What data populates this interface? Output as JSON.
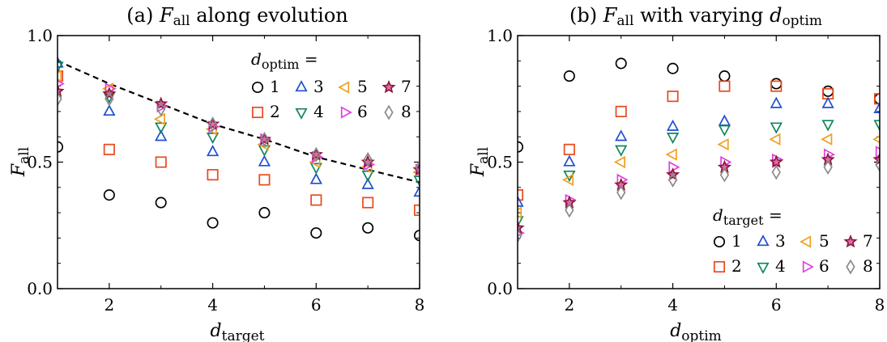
{
  "chart_data": [
    {
      "type": "scatter",
      "title": "(a) F_all along evolution",
      "title_prefix": "(a)",
      "title_var": "F",
      "title_sub": "all",
      "title_suffix": "along evolution",
      "xlabel_var": "d",
      "xlabel_sub": "target",
      "ylabel_var": "F",
      "ylabel_sub": "all",
      "xlim": [
        1,
        8
      ],
      "ylim": [
        0,
        1
      ],
      "xticks": [
        "2",
        "4",
        "6",
        "8"
      ],
      "yticks": [
        "0.0",
        "0.5",
        "1.0"
      ],
      "grid": false,
      "legend_title_var": "d",
      "legend_title_sub": "optim",
      "legend_title_suffix": "=",
      "legend_position": "top-right",
      "x": [
        1,
        2,
        3,
        4,
        5,
        6,
        7,
        8
      ],
      "series": [
        {
          "name": "1",
          "values": [
            0.56,
            0.37,
            0.34,
            0.26,
            0.3,
            0.22,
            0.24,
            0.21
          ]
        },
        {
          "name": "2",
          "values": [
            0.84,
            0.55,
            0.5,
            0.45,
            0.43,
            0.35,
            0.34,
            0.31
          ]
        },
        {
          "name": "3",
          "values": [
            0.89,
            0.7,
            0.6,
            0.54,
            0.5,
            0.43,
            0.41,
            0.38
          ]
        },
        {
          "name": "4",
          "values": [
            0.88,
            0.76,
            0.64,
            0.6,
            0.55,
            0.48,
            0.45,
            0.43
          ]
        },
        {
          "name": "5",
          "values": [
            0.84,
            0.79,
            0.67,
            0.63,
            0.57,
            0.5,
            0.48,
            0.46
          ]
        },
        {
          "name": "6",
          "values": [
            0.81,
            0.79,
            0.72,
            0.64,
            0.59,
            0.52,
            0.49,
            0.47
          ]
        },
        {
          "name": "7",
          "values": [
            0.78,
            0.77,
            0.73,
            0.65,
            0.59,
            0.53,
            0.5,
            0.47
          ]
        },
        {
          "name": "8",
          "values": [
            0.75,
            0.75,
            0.71,
            0.65,
            0.59,
            0.53,
            0.51,
            0.48
          ]
        }
      ],
      "dashed_curve": {
        "x": [
          1,
          2,
          3,
          4,
          5,
          6,
          7,
          8
        ],
        "values": [
          0.9,
          0.81,
          0.73,
          0.65,
          0.59,
          0.52,
          0.47,
          0.42
        ]
      }
    },
    {
      "type": "scatter",
      "title": "(b) F_all with varying d_optim",
      "title_prefix": "(b)",
      "title_var": "F",
      "title_sub": "all",
      "title_mid": "with varying",
      "title_var2": "d",
      "title_sub2": "optim",
      "xlabel_var": "d",
      "xlabel_sub": "optim",
      "ylabel_var": "F",
      "ylabel_sub": "all",
      "xlim": [
        1,
        8
      ],
      "ylim": [
        0,
        1
      ],
      "xticks": [
        "2",
        "4",
        "6",
        "8"
      ],
      "yticks": [
        "0.0",
        "0.5",
        "1.0"
      ],
      "grid": false,
      "legend_title_var": "d",
      "legend_title_sub": "target",
      "legend_title_suffix": "=",
      "legend_position": "bottom-right",
      "x": [
        1,
        2,
        3,
        4,
        5,
        6,
        7,
        8
      ],
      "series": [
        {
          "name": "1",
          "values": [
            0.56,
            0.84,
            0.89,
            0.87,
            0.84,
            0.81,
            0.78,
            0.75
          ]
        },
        {
          "name": "2",
          "values": [
            0.37,
            0.55,
            0.7,
            0.76,
            0.8,
            0.8,
            0.77,
            0.75
          ]
        },
        {
          "name": "3",
          "values": [
            0.34,
            0.5,
            0.6,
            0.64,
            0.66,
            0.73,
            0.73,
            0.71
          ]
        },
        {
          "name": "4",
          "values": [
            0.27,
            0.45,
            0.55,
            0.6,
            0.63,
            0.64,
            0.65,
            0.65
          ]
        },
        {
          "name": "5",
          "values": [
            0.3,
            0.43,
            0.5,
            0.53,
            0.57,
            0.59,
            0.59,
            0.59
          ]
        },
        {
          "name": "6",
          "values": [
            0.22,
            0.35,
            0.43,
            0.48,
            0.5,
            0.51,
            0.53,
            0.54
          ]
        },
        {
          "name": "7",
          "values": [
            0.24,
            0.34,
            0.41,
            0.45,
            0.48,
            0.5,
            0.51,
            0.51
          ]
        },
        {
          "name": "8",
          "values": [
            0.21,
            0.31,
            0.38,
            0.43,
            0.45,
            0.46,
            0.48,
            0.49
          ]
        }
      ]
    }
  ],
  "style": {
    "series_colors": [
      "#000000",
      "#e8491d",
      "#1f4fd1",
      "#11865c",
      "#f0a020",
      "#e23ee2",
      "#8b1a3a",
      "#8a8a8a"
    ],
    "series_fill": [
      "none",
      "none",
      "none",
      "none",
      "none",
      "none",
      "#e06cae",
      "none"
    ],
    "marker_shapes": [
      "circle",
      "square",
      "triangle-up",
      "triangle-down",
      "triangle-left",
      "triangle-right",
      "star",
      "diamond"
    ],
    "curve_color": "#000000"
  }
}
